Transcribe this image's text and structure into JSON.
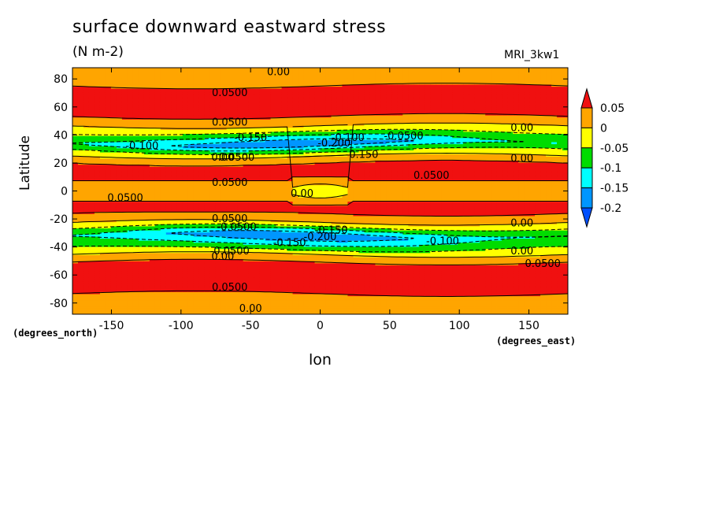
{
  "title": "surface downward eastward stress",
  "units": "(N m-2)",
  "model": "MRI_3kw1",
  "y_axis_label": "Latitude",
  "y_units": "(degrees_north)",
  "x_axis_label": "lon",
  "x_units": "(degrees_east)",
  "chart_data": {
    "type": "heatmap",
    "title": "surface downward eastward stress",
    "units": "(N m-2)",
    "xlabel": "lon",
    "ylabel": "Latitude",
    "xlim": [
      -178,
      178
    ],
    "ylim": [
      -88,
      88
    ],
    "xticks": [
      -150,
      -100,
      -50,
      0,
      50,
      100,
      150
    ],
    "xtick_labels": [
      "-150",
      "-100",
      "-50",
      "0",
      "50",
      "100",
      "150"
    ],
    "yticks": [
      -80,
      -60,
      -40,
      -20,
      0,
      20,
      40,
      60,
      80
    ],
    "ytick_labels": [
      "-80",
      "-60",
      "-40",
      "-20",
      "0",
      "20",
      "40",
      "60",
      "80"
    ],
    "colorbar": {
      "levels": [
        0.05,
        0,
        -0.05,
        -0.1,
        -0.15,
        -0.2
      ],
      "labels": [
        "0.05",
        "0",
        "-0.05",
        "-0.1",
        "-0.15",
        "-0.2"
      ],
      "colors": [
        "#f01010",
        "#ffa500",
        "#ffff00",
        "#00dc00",
        "#00ffff",
        "#0096ff",
        "#0050ff"
      ]
    },
    "zonal_profile": [
      {
        "lat": -88,
        "value": 0.0
      },
      {
        "lat": -80,
        "value": 0.03
      },
      {
        "lat": -70,
        "value": 0.06
      },
      {
        "lat": -60,
        "value": 0.08
      },
      {
        "lat": -52,
        "value": 0.06
      },
      {
        "lat": -46,
        "value": 0.01
      },
      {
        "lat": -42,
        "value": -0.06
      },
      {
        "lat": -36,
        "value": -0.15
      },
      {
        "lat": -32,
        "value": -0.2
      },
      {
        "lat": -28,
        "value": -0.12
      },
      {
        "lat": -24,
        "value": -0.02
      },
      {
        "lat": -20,
        "value": 0.03
      },
      {
        "lat": -12,
        "value": 0.07
      },
      {
        "lat": -5,
        "value": 0.04
      },
      {
        "lat": 0,
        "value": 0.02
      },
      {
        "lat": 5,
        "value": 0.04
      },
      {
        "lat": 12,
        "value": 0.07
      },
      {
        "lat": 20,
        "value": 0.05
      },
      {
        "lat": 25,
        "value": 0.0
      },
      {
        "lat": 30,
        "value": -0.1
      },
      {
        "lat": 34,
        "value": -0.2
      },
      {
        "lat": 38,
        "value": -0.14
      },
      {
        "lat": 43,
        "value": -0.05
      },
      {
        "lat": 48,
        "value": 0.02
      },
      {
        "lat": 55,
        "value": 0.06
      },
      {
        "lat": 65,
        "value": 0.08
      },
      {
        "lat": 75,
        "value": 0.05
      },
      {
        "lat": 82,
        "value": 0.02
      },
      {
        "lat": 88,
        "value": 0.0
      }
    ],
    "contour_labels": [
      {
        "text": "0.00",
        "lon": -30,
        "lat": 85
      },
      {
        "text": "0.0500",
        "lon": -65,
        "lat": 70
      },
      {
        "text": "0.0500",
        "lon": -65,
        "lat": 49
      },
      {
        "text": "-0.150",
        "lon": -50,
        "lat": 38
      },
      {
        "text": "-0.100",
        "lon": -128,
        "lat": 32
      },
      {
        "text": "-0.200",
        "lon": 10,
        "lat": 34
      },
      {
        "text": "-0.100",
        "lon": 20,
        "lat": 38
      },
      {
        "text": "-0.0500",
        "lon": 60,
        "lat": 39
      },
      {
        "text": "-0.150",
        "lon": 30,
        "lat": 26
      },
      {
        "text": "0.00",
        "lon": -70,
        "lat": 24
      },
      {
        "text": "0.0500",
        "lon": -60,
        "lat": 24
      },
      {
        "text": "0.00",
        "lon": 145,
        "lat": 45
      },
      {
        "text": "0.00",
        "lon": 145,
        "lat": 23
      },
      {
        "text": "0.0500",
        "lon": 80,
        "lat": 11
      },
      {
        "text": "0.0500",
        "lon": -65,
        "lat": 6
      },
      {
        "text": "0.00",
        "lon": -13,
        "lat": -2
      },
      {
        "text": "0.0500",
        "lon": -140,
        "lat": -5
      },
      {
        "text": "0.0500",
        "lon": -65,
        "lat": -20
      },
      {
        "text": "-0.0500",
        "lon": -60,
        "lat": -26
      },
      {
        "text": "-0.150",
        "lon": 8,
        "lat": -28
      },
      {
        "text": "-0.200",
        "lon": 0,
        "lat": -33
      },
      {
        "text": "-0.150",
        "lon": -22,
        "lat": -37
      },
      {
        "text": "-0.100",
        "lon": 88,
        "lat": -36
      },
      {
        "text": "-0.0500",
        "lon": -65,
        "lat": -43
      },
      {
        "text": "0.00",
        "lon": -70,
        "lat": -47
      },
      {
        "text": "0.00",
        "lon": 145,
        "lat": -23
      },
      {
        "text": "0.00",
        "lon": 145,
        "lat": -43
      },
      {
        "text": "0.0500",
        "lon": 160,
        "lat": -52
      },
      {
        "text": "0.0500",
        "lon": -65,
        "lat": -69
      },
      {
        "text": "0.00",
        "lon": -50,
        "lat": -84
      }
    ]
  }
}
